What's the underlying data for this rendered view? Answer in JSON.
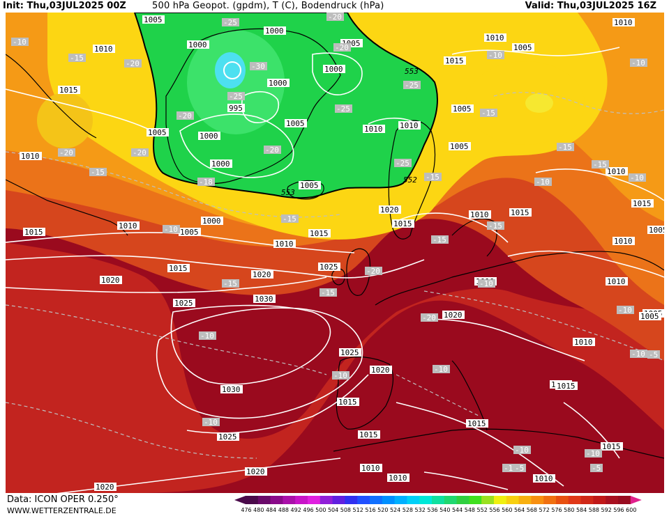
{
  "header": {
    "init": "Init: Thu,03JUL2025 00Z",
    "title": "500 hPa Geopot. (gpdm), T (C), Bodendruck (hPa)",
    "valid": "Valid: Thu,03JUL2025 16Z"
  },
  "footer": {
    "data_source": "Data: ICON OPER 0.250°",
    "website": "WWW.WETTERZENTRALE.DE"
  },
  "colors": {
    "deep_red": "#9a0a1e",
    "red": "#c2241f",
    "dark_orange": "#d6461d",
    "orange": "#eb7319",
    "light_orange": "#f59a16",
    "yellow": "#fcd613",
    "green": "#1fd24a",
    "light_green": "#49e878",
    "cyan": "#4de0f0",
    "contour_white": "#ffffff",
    "coast_black": "#000000"
  },
  "legend": {
    "scale": [
      "476",
      "480",
      "484",
      "488",
      "492",
      "496",
      "500",
      "504",
      "508",
      "512",
      "516",
      "520",
      "524",
      "528",
      "532",
      "536",
      "540",
      "544",
      "548",
      "552",
      "556",
      "560",
      "564",
      "568",
      "572",
      "576",
      "580",
      "584",
      "588",
      "592",
      "596",
      "600"
    ],
    "colors": [
      "#4a0a4a",
      "#6a0a6a",
      "#8a0a8a",
      "#aa10aa",
      "#c814c8",
      "#e020e0",
      "#9020d8",
      "#6020e0",
      "#3030f0",
      "#2050ff",
      "#1070ff",
      "#0090ff",
      "#00b0ff",
      "#00d0f8",
      "#00e8d8",
      "#10e0a0",
      "#20d870",
      "#30d040",
      "#40e020",
      "#9ae020",
      "#f0f010",
      "#f8d010",
      "#f8b010",
      "#f89010",
      "#f07010",
      "#e85010",
      "#e03818",
      "#d02818",
      "#c01818",
      "#a81020",
      "#980c20",
      "#e0208c"
    ]
  },
  "isobars": {
    "labels": [
      {
        "t": "1005"
      },
      {
        "t": "1000"
      },
      {
        "t": "1005"
      },
      {
        "t": "1010"
      },
      {
        "t": "1015"
      },
      {
        "t": "1005"
      },
      {
        "t": "1010"
      },
      {
        "t": "1010"
      },
      {
        "t": "1000"
      },
      {
        "t": "1000"
      },
      {
        "t": "1000"
      },
      {
        "t": "995"
      },
      {
        "t": "1015"
      },
      {
        "t": "1005"
      },
      {
        "t": "1005"
      },
      {
        "t": "1000"
      },
      {
        "t": "1010"
      },
      {
        "t": "1005"
      },
      {
        "t": "1010"
      },
      {
        "t": "1000"
      },
      {
        "t": "1005"
      },
      {
        "t": "1005"
      },
      {
        "t": "1010"
      },
      {
        "t": "1010"
      },
      {
        "t": "1010"
      },
      {
        "t": "1015"
      },
      {
        "t": "1005"
      },
      {
        "t": "1010"
      },
      {
        "t": "1015"
      },
      {
        "t": "1000"
      },
      {
        "t": "1010"
      },
      {
        "t": "1005"
      },
      {
        "t": "1015"
      },
      {
        "t": "1015"
      },
      {
        "t": "1020"
      },
      {
        "t": "1010"
      },
      {
        "t": "1015"
      },
      {
        "t": "1025"
      },
      {
        "t": "1020"
      },
      {
        "t": "1015"
      },
      {
        "t": "1020"
      },
      {
        "t": "1030"
      },
      {
        "t": "1025"
      },
      {
        "t": "1020"
      },
      {
        "t": "1005"
      },
      {
        "t": "1010"
      },
      {
        "t": "1025"
      },
      {
        "t": "1020"
      },
      {
        "t": "1015"
      },
      {
        "t": "1030"
      },
      {
        "t": "1015"
      },
      {
        "t": "1015"
      },
      {
        "t": "1025"
      },
      {
        "t": "1015"
      },
      {
        "t": "1010"
      },
      {
        "t": "1020"
      },
      {
        "t": "1015"
      },
      {
        "t": "1010"
      },
      {
        "t": "1020"
      },
      {
        "t": "1010"
      },
      {
        "t": "1010"
      },
      {
        "t": "1010"
      },
      {
        "t": "1005"
      },
      {
        "t": "1015"
      }
    ]
  },
  "temperature_labels": [
    "-10",
    "-15",
    "-20",
    "-20",
    "-25",
    "-30",
    "-25",
    "-20",
    "-25",
    "-25",
    "-20",
    "-20",
    "-15",
    "-25",
    "-20",
    "-20",
    "-18",
    "-15",
    "-10",
    "-15",
    "-20",
    "-15",
    "-10",
    "-15",
    "-10",
    "-15",
    "-15",
    "-10",
    "-10",
    "-10",
    "-10",
    "-15",
    "-15",
    "-15",
    "-10",
    "-10",
    "-10",
    "-20",
    "-10",
    "-10",
    "-10",
    "-10",
    "-10",
    "-5",
    "-5",
    "-5"
  ],
  "height_labels": [
    "553",
    "552",
    "553"
  ]
}
